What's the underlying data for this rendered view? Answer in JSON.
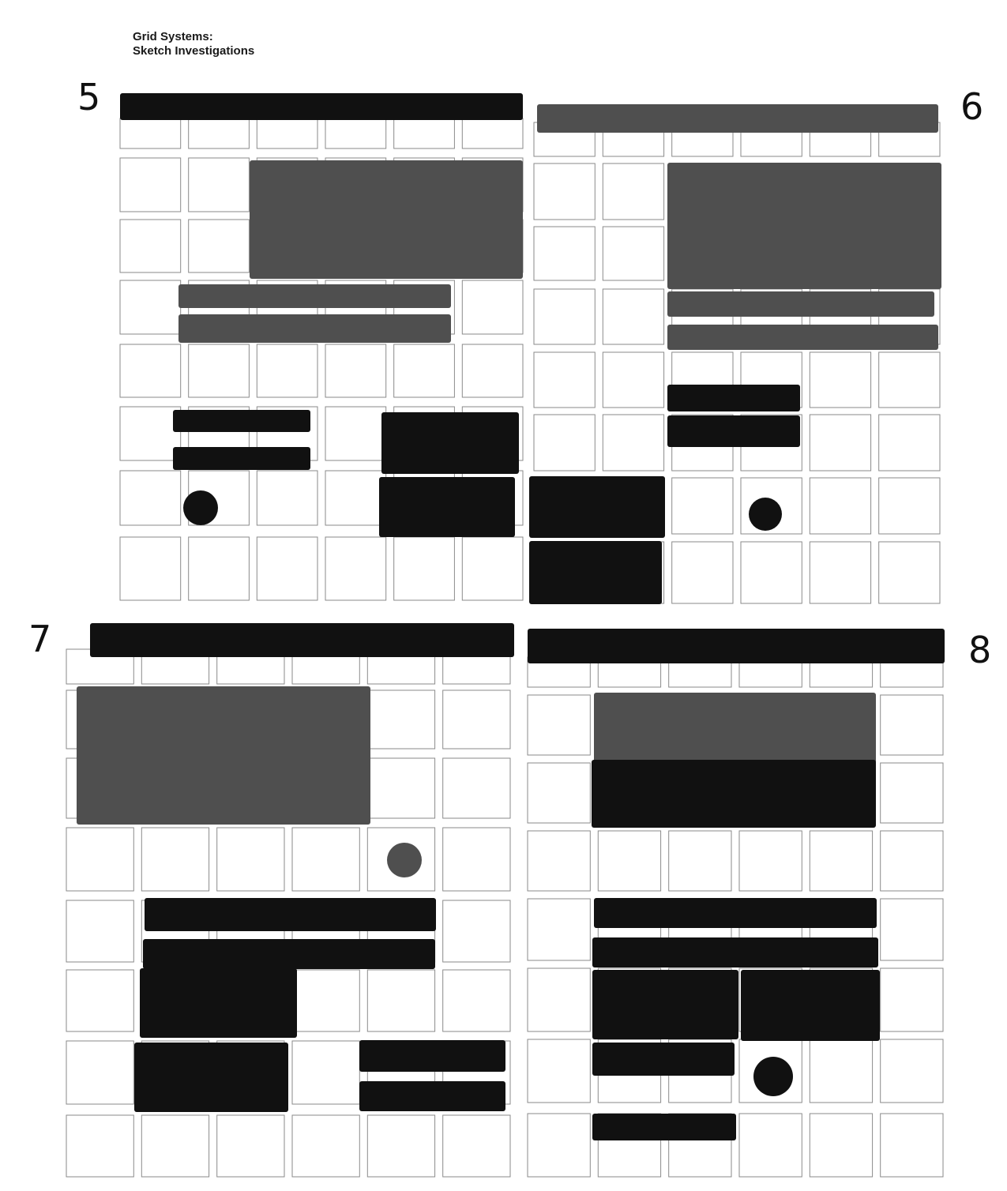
{
  "header": {
    "title_line1": "Grid Systems:",
    "title_line2": "Sketch Investigations"
  },
  "colors": {
    "ink_black": "#111111",
    "ink_gray": "#4f4f4f",
    "grid_line": "#8a8a8a",
    "paper": "#ffffff"
  },
  "panels": [
    {
      "number": "5"
    },
    {
      "number": "6"
    },
    {
      "number": "7"
    },
    {
      "number": "8"
    }
  ]
}
